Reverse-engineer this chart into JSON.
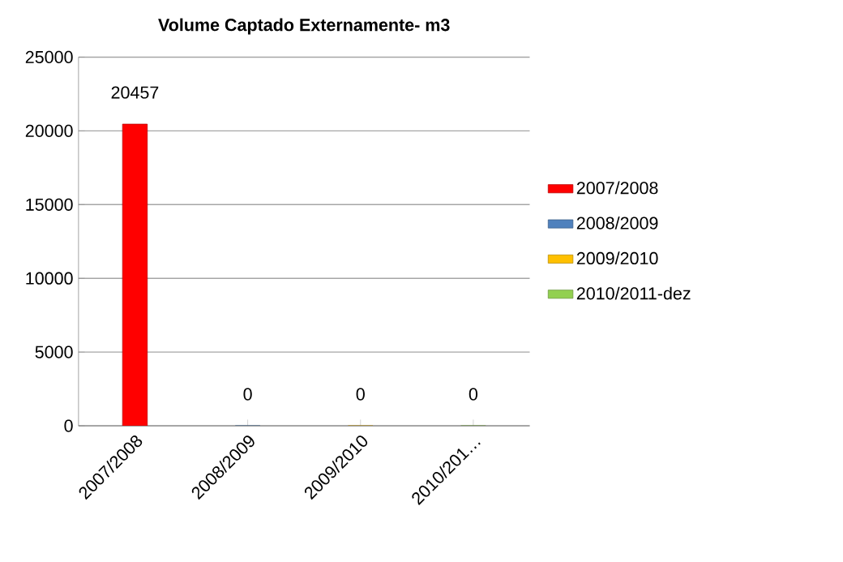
{
  "chart_data": {
    "type": "bar",
    "title": "Volume Captado Externamente- m3",
    "categories": [
      "2007/2008",
      "2008/2009",
      "2009/2010",
      "2010/201…"
    ],
    "series": [
      {
        "name": "2007/2008",
        "color": "#ff0000",
        "values": [
          20457,
          null,
          null,
          null
        ]
      },
      {
        "name": "2008/2009",
        "color": "#4f81bd",
        "values": [
          null,
          0,
          null,
          null
        ]
      },
      {
        "name": "2009/2010",
        "color": "#ffc000",
        "values": [
          null,
          null,
          0,
          null
        ]
      },
      {
        "name": "2010/2011-dez",
        "color": "#92d050",
        "values": [
          null,
          null,
          null,
          0
        ]
      }
    ],
    "ylim": [
      0,
      25000
    ],
    "yticks": [
      0,
      5000,
      10000,
      15000,
      20000,
      25000
    ],
    "grid": "y",
    "legend": "right",
    "data_labels": true
  }
}
